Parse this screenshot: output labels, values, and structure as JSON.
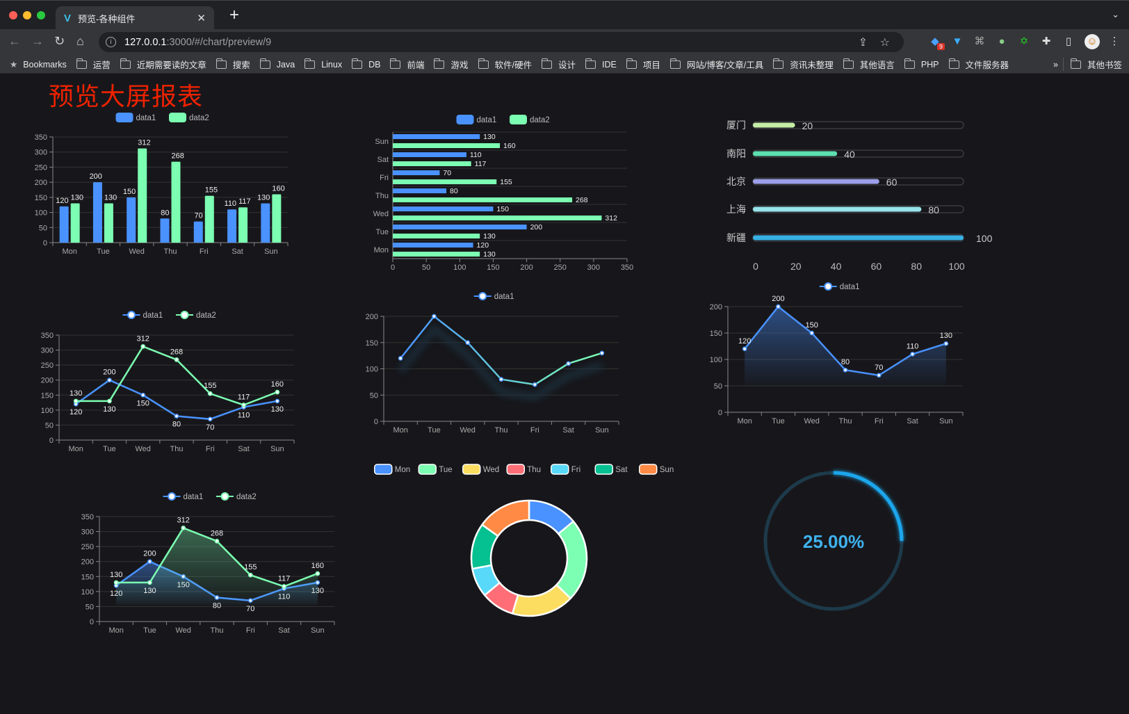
{
  "browser": {
    "tab_title": "预览-各种组件",
    "tab_icon": "vue-logo-icon",
    "url_host": "127.0.0.1",
    "url_path": ":3000/#/chart/preview/9",
    "extension_badge": "9",
    "bookmarks_label": "Bookmarks",
    "bookmark_folders": [
      "运营",
      "近期需要读的文章",
      "搜索",
      "Java",
      "Linux",
      "DB",
      "前端",
      "游戏",
      "软件/硬件",
      "设计",
      "IDE",
      "项目",
      "网站/博客/文章/工具",
      "资讯未整理",
      "其他语言",
      "PHP",
      "文件服务器"
    ],
    "overflow": "»",
    "other_bookmarks": "其他书签"
  },
  "page": {
    "title": "预览大屏报表",
    "title_color": "#ee2200"
  },
  "colors": {
    "data1": "#4992ff",
    "data2": "#7cffb2"
  },
  "chart_data": [
    {
      "type": "bar",
      "orientation": "vertical",
      "legend": [
        "data1",
        "data2"
      ],
      "categories": [
        "Mon",
        "Tue",
        "Wed",
        "Thu",
        "Fri",
        "Sat",
        "Sun"
      ],
      "series": [
        {
          "name": "data1",
          "values": [
            120,
            200,
            150,
            80,
            70,
            110,
            130
          ]
        },
        {
          "name": "data2",
          "values": [
            130,
            130,
            312,
            268,
            155,
            117,
            160
          ]
        }
      ],
      "ylim": [
        0,
        350
      ],
      "yticks": [
        0,
        50,
        100,
        150,
        200,
        250,
        300,
        350
      ],
      "grid": true,
      "legend_position": "top"
    },
    {
      "type": "bar",
      "orientation": "horizontal",
      "legend": [
        "data1",
        "data2"
      ],
      "categories": [
        "Mon",
        "Tue",
        "Wed",
        "Thu",
        "Fri",
        "Sat",
        "Sun"
      ],
      "series": [
        {
          "name": "data1",
          "values": [
            120,
            200,
            150,
            80,
            70,
            110,
            130
          ]
        },
        {
          "name": "data2",
          "values": [
            130,
            130,
            312,
            268,
            155,
            117,
            160
          ]
        }
      ],
      "xlim": [
        0,
        350
      ],
      "xticks": [
        0,
        50,
        100,
        150,
        200,
        250,
        300,
        350
      ],
      "grid": true,
      "legend_position": "top"
    },
    {
      "type": "bar",
      "orientation": "progress",
      "categories": [
        "厦门",
        "南阳",
        "北京",
        "上海",
        "新疆"
      ],
      "values": [
        20,
        40,
        60,
        80,
        100
      ],
      "colors": [
        "#c5eda5",
        "#5ddfb0",
        "#9d9eea",
        "#97e3ea",
        "#37b0e4"
      ],
      "xlim": [
        0,
        100
      ],
      "xticks": [
        0,
        20,
        40,
        60,
        80,
        100
      ]
    },
    {
      "type": "line",
      "legend": [
        "data1",
        "data2"
      ],
      "categories": [
        "Mon",
        "Tue",
        "Wed",
        "Thu",
        "Fri",
        "Sat",
        "Sun"
      ],
      "series": [
        {
          "name": "data1",
          "values": [
            120,
            200,
            150,
            80,
            70,
            110,
            130
          ]
        },
        {
          "name": "data2",
          "values": [
            130,
            130,
            312,
            268,
            155,
            117,
            160
          ]
        }
      ],
      "ylim": [
        0,
        350
      ],
      "yticks": [
        0,
        50,
        100,
        150,
        200,
        250,
        300,
        350
      ],
      "grid": true,
      "legend_position": "top"
    },
    {
      "type": "line",
      "legend": [
        "data1"
      ],
      "categories": [
        "Mon",
        "Tue",
        "Wed",
        "Thu",
        "Fri",
        "Sat",
        "Sun"
      ],
      "series": [
        {
          "name": "data1",
          "values": [
            120,
            200,
            150,
            80,
            70,
            110,
            130
          ]
        }
      ],
      "line_gradient": [
        "#4992ff",
        "#7cffb2"
      ],
      "ylim": [
        0,
        200
      ],
      "yticks": [
        0,
        50,
        100,
        150,
        200
      ],
      "grid": true,
      "legend_position": "top",
      "show_labels": false
    },
    {
      "type": "area",
      "legend": [
        "data1"
      ],
      "categories": [
        "Mon",
        "Tue",
        "Wed",
        "Thu",
        "Fri",
        "Sat",
        "Sun"
      ],
      "series": [
        {
          "name": "data1",
          "values": [
            120,
            200,
            150,
            80,
            70,
            110,
            130
          ]
        }
      ],
      "ylim": [
        0,
        200
      ],
      "yticks": [
        0,
        50,
        100,
        150,
        200
      ],
      "grid": true,
      "legend_position": "top"
    },
    {
      "type": "area",
      "legend": [
        "data1",
        "data2"
      ],
      "categories": [
        "Mon",
        "Tue",
        "Wed",
        "Thu",
        "Fri",
        "Sat",
        "Sun"
      ],
      "series": [
        {
          "name": "data1",
          "values": [
            120,
            200,
            150,
            80,
            70,
            110,
            130
          ]
        },
        {
          "name": "data2",
          "values": [
            130,
            130,
            312,
            268,
            155,
            117,
            160
          ]
        }
      ],
      "ylim": [
        0,
        350
      ],
      "yticks": [
        0,
        50,
        100,
        150,
        200,
        250,
        300,
        350
      ],
      "grid": true,
      "legend_position": "top"
    },
    {
      "type": "pie",
      "donut": true,
      "categories": [
        "Mon",
        "Tue",
        "Wed",
        "Thu",
        "Fri",
        "Sat",
        "Sun"
      ],
      "values": [
        120,
        200,
        150,
        80,
        70,
        110,
        130
      ],
      "colors": [
        "#4992ff",
        "#7cffb2",
        "#fddd60",
        "#ff6e76",
        "#58d9f9",
        "#05c091",
        "#ff8a45"
      ],
      "legend_position": "top"
    },
    {
      "type": "gauge",
      "value": 25,
      "label": "25.00%",
      "color": "#1aa6ec",
      "track_color": "#1d3a4a"
    }
  ]
}
